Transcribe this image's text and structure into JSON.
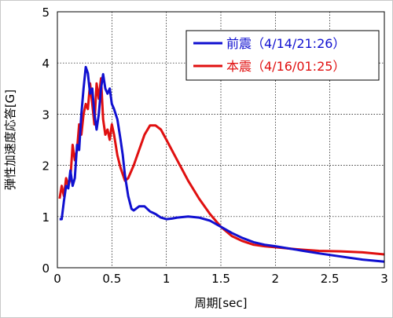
{
  "chart_data": {
    "type": "line",
    "xlabel": "周期[sec]",
    "ylabel": "弾性加速度応答[G]",
    "xlim": [
      0,
      3
    ],
    "ylim": [
      0,
      5
    ],
    "xticks": [
      "0",
      "0.5",
      "1",
      "1.5",
      "2",
      "2.5",
      "3"
    ],
    "yticks": [
      "0",
      "1",
      "2",
      "3",
      "4",
      "5"
    ],
    "grid": true,
    "legend_position": "top-right",
    "series": [
      {
        "name": "前震（4/14/21:26）",
        "color": "#1010d0",
        "x": [
          0.02,
          0.04,
          0.06,
          0.08,
          0.1,
          0.12,
          0.14,
          0.16,
          0.18,
          0.2,
          0.22,
          0.24,
          0.26,
          0.28,
          0.3,
          0.32,
          0.34,
          0.36,
          0.38,
          0.4,
          0.42,
          0.44,
          0.46,
          0.48,
          0.5,
          0.52,
          0.55,
          0.58,
          0.6,
          0.62,
          0.65,
          0.68,
          0.7,
          0.72,
          0.75,
          0.8,
          0.85,
          0.9,
          0.95,
          1.0,
          1.05,
          1.1,
          1.2,
          1.3,
          1.4,
          1.5,
          1.6,
          1.7,
          1.8,
          1.9,
          2.0,
          2.2,
          2.4,
          2.6,
          2.8,
          3.0
        ],
        "y": [
          0.95,
          0.95,
          1.3,
          1.6,
          1.55,
          1.9,
          1.6,
          1.75,
          2.4,
          2.3,
          3.0,
          3.5,
          3.92,
          3.8,
          3.4,
          3.5,
          3.0,
          2.7,
          3.0,
          3.5,
          3.78,
          3.5,
          3.4,
          3.5,
          3.2,
          3.1,
          2.9,
          2.5,
          2.2,
          1.8,
          1.4,
          1.15,
          1.12,
          1.15,
          1.2,
          1.2,
          1.1,
          1.05,
          0.98,
          0.95,
          0.96,
          0.98,
          1.0,
          0.98,
          0.92,
          0.8,
          0.68,
          0.58,
          0.5,
          0.45,
          0.42,
          0.35,
          0.28,
          0.22,
          0.16,
          0.12
        ]
      },
      {
        "name": "本震（4/16/01:25）",
        "color": "#e01010",
        "x": [
          0.02,
          0.04,
          0.06,
          0.08,
          0.1,
          0.12,
          0.14,
          0.16,
          0.18,
          0.2,
          0.22,
          0.24,
          0.26,
          0.28,
          0.3,
          0.32,
          0.34,
          0.36,
          0.38,
          0.4,
          0.42,
          0.44,
          0.46,
          0.48,
          0.5,
          0.52,
          0.55,
          0.58,
          0.62,
          0.65,
          0.7,
          0.75,
          0.8,
          0.85,
          0.9,
          0.95,
          1.0,
          1.1,
          1.2,
          1.3,
          1.4,
          1.5,
          1.6,
          1.7,
          1.8,
          1.9,
          2.0,
          2.2,
          2.4,
          2.6,
          2.8,
          3.0
        ],
        "y": [
          1.35,
          1.6,
          1.4,
          1.75,
          1.6,
          1.75,
          2.4,
          2.1,
          2.3,
          2.8,
          2.6,
          3.0,
          3.2,
          3.1,
          3.6,
          3.2,
          2.8,
          3.6,
          3.3,
          3.7,
          2.9,
          2.6,
          2.7,
          2.5,
          2.8,
          2.6,
          2.2,
          1.95,
          1.7,
          1.75,
          2.0,
          2.3,
          2.6,
          2.78,
          2.78,
          2.7,
          2.5,
          2.1,
          1.7,
          1.35,
          1.05,
          0.8,
          0.62,
          0.52,
          0.45,
          0.42,
          0.4,
          0.36,
          0.33,
          0.32,
          0.3,
          0.26
        ]
      }
    ]
  }
}
